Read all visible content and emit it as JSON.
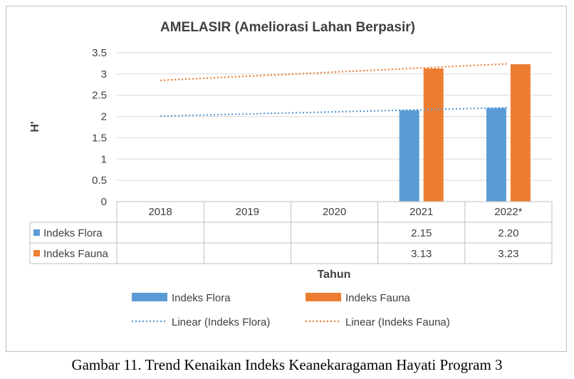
{
  "chart_data": {
    "type": "bar",
    "title": "AMELASIR (Ameliorasi Lahan Berpasir)",
    "xlabel": "Tahun",
    "ylabel": "H'",
    "ylim": [
      0,
      3.5
    ],
    "yticks": [
      "0",
      "0.5",
      "1",
      "1.5",
      "2",
      "2.5",
      "3",
      "3.5"
    ],
    "categories": [
      "2018",
      "2019",
      "2020",
      "2021",
      "2022*"
    ],
    "grid": true,
    "series": [
      {
        "name": "Indeks Flora",
        "color": "#5b9bd5",
        "values": [
          null,
          null,
          null,
          2.15,
          2.2
        ],
        "labels": [
          "",
          "",
          "",
          "2.15",
          "2.20"
        ]
      },
      {
        "name": "Indeks Fauna",
        "color": "#ed7d31",
        "values": [
          null,
          null,
          null,
          3.13,
          3.23
        ],
        "labels": [
          "",
          "",
          "",
          "3.13",
          "3.23"
        ]
      }
    ],
    "trendlines": [
      {
        "name": "Linear (Indeks Flora)",
        "color": "#5b9bd5",
        "start": 2.01,
        "end": 2.21
      },
      {
        "name": "Linear (Indeks Fauna)",
        "color": "#ed7d31",
        "start": 2.85,
        "end": 3.24
      }
    ],
    "legend_position": "bottom"
  },
  "caption": "Gambar 11. Trend Kenaikan Indeks Keanekaragaman Hayati Program 3"
}
